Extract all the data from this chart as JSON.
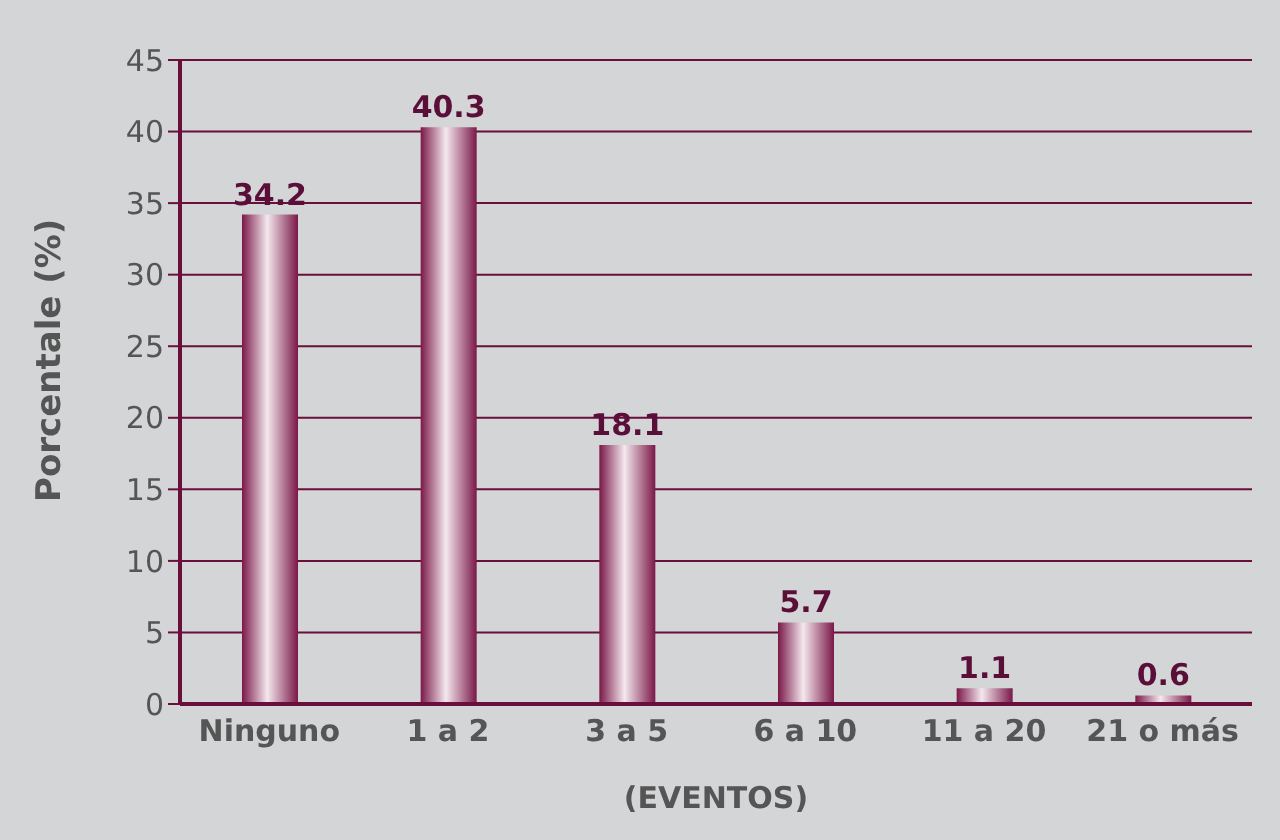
{
  "chart_data": {
    "type": "bar",
    "xlabel": "(EVENTOS)",
    "ylabel": "Porcentale (%)",
    "categories": [
      "Ninguno",
      "1 a 2",
      "3 a 5",
      "6 a 10",
      "11 a 20",
      "21 o más"
    ],
    "values": [
      34.2,
      40.3,
      18.1,
      5.7,
      1.1,
      0.6
    ],
    "color": "#7a1848",
    "ylim": [
      0,
      45
    ],
    "yticks": [
      0,
      5,
      10,
      15,
      20,
      25,
      30,
      35,
      40,
      45
    ],
    "grid": "y",
    "data_labels": true
  }
}
